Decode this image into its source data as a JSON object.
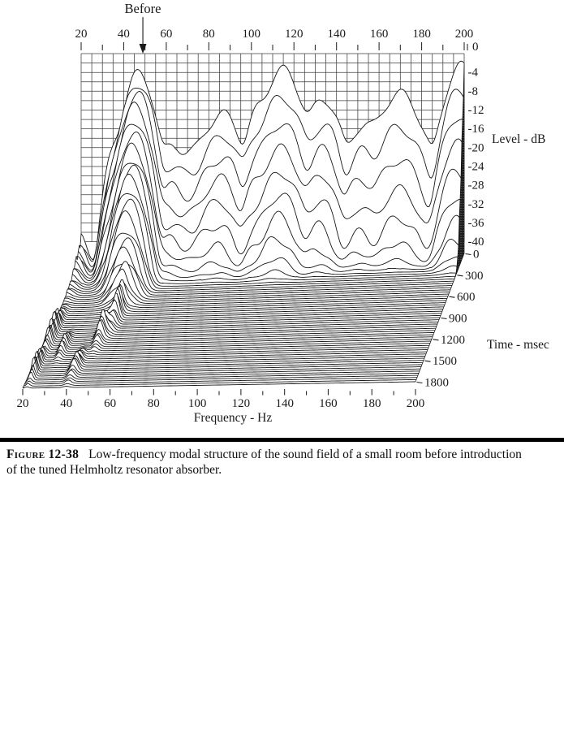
{
  "page": {
    "background": "#ffffff",
    "ink": "#1a1a1a"
  },
  "chart_data": {
    "type": "waterfall",
    "title_annotation": {
      "text": "Before",
      "arrow_freq_hz": 49
    },
    "freq_axis": {
      "label": "Frequency - Hz",
      "min": 20,
      "max": 200,
      "major_ticks": [
        20,
        40,
        60,
        80,
        100,
        120,
        140,
        160,
        180,
        200
      ],
      "minor_tick_step": 10,
      "grid_step_hz": 5
    },
    "level_axis": {
      "label": "Level - dB",
      "max": 0,
      "min": -40,
      "ticks": [
        0,
        -4,
        -8,
        -12,
        -16,
        -20,
        -24,
        -28,
        -32,
        -36,
        -40
      ],
      "grid_step_db": 2
    },
    "time_axis": {
      "label": "Time - msec",
      "min": 0,
      "max": 1800,
      "ticks": [
        0,
        300,
        600,
        900,
        1200,
        1500,
        1800
      ]
    },
    "slices": {
      "count": 61,
      "dt_ms": 30
    },
    "noise_floor_db": -42.5,
    "cut_face_at_hz": 200,
    "modes": [
      {
        "f": 20,
        "level": -37,
        "bw": 3,
        "decay_db_per_s": 25
      },
      {
        "f": 37,
        "level": -16,
        "bw": 3.5,
        "decay_db_per_s": 90
      },
      {
        "f": 47,
        "level": -1.5,
        "bw": 4.5,
        "decay_db_per_s": 70
      },
      {
        "f": 63,
        "level": -18,
        "bw": 4.5,
        "decay_db_per_s": 120
      },
      {
        "f": 72,
        "level": -20,
        "bw": 5,
        "decay_db_per_s": 130
      },
      {
        "f": 81,
        "level": -14,
        "bw": 4.5,
        "decay_db_per_s": 150
      },
      {
        "f": 88,
        "level": -11,
        "bw": 5,
        "decay_db_per_s": 150
      },
      {
        "f": 103,
        "level": -12,
        "bw": 4,
        "decay_db_per_s": 155
      },
      {
        "f": 115,
        "level": -2.5,
        "bw": 6,
        "decay_db_per_s": 160
      },
      {
        "f": 134,
        "level": -8,
        "bw": 5,
        "decay_db_per_s": 175
      },
      {
        "f": 152,
        "level": -15,
        "bw": 5,
        "decay_db_per_s": 175
      },
      {
        "f": 170,
        "level": -8,
        "bw": 7,
        "decay_db_per_s": 210
      },
      {
        "f": 198,
        "level": -3,
        "bw": 5,
        "decay_db_per_s": 165
      }
    ],
    "late_bumps": [
      {
        "f": 48,
        "t": 700,
        "amp": 5,
        "bwf": 2,
        "bwt": 220
      },
      {
        "f": 45,
        "t": 1000,
        "amp": 4,
        "bwf": 2,
        "bwt": 200
      },
      {
        "f": 40,
        "t": 1500,
        "amp": 2.5,
        "bwf": 2,
        "bwt": 200
      },
      {
        "f": 22,
        "t": 1000,
        "amp": 4,
        "bwf": 1.5,
        "bwt": 250
      },
      {
        "f": 22,
        "t": 1520,
        "amp": 3.5,
        "bwf": 1.2,
        "bwt": 180
      },
      {
        "f": 30,
        "t": 1200,
        "amp": 2.5,
        "bwf": 1.5,
        "bwt": 150
      }
    ],
    "hand_ripple": {
      "amp_db": 1.1,
      "f_scale": 0.45,
      "slice_phase": 2.1
    }
  },
  "caption": {
    "label": "Figure 12-38",
    "text": "Low-frequency modal structure of the sound field of a small room before introduction of the tuned Helmholtz resonator absorber."
  }
}
